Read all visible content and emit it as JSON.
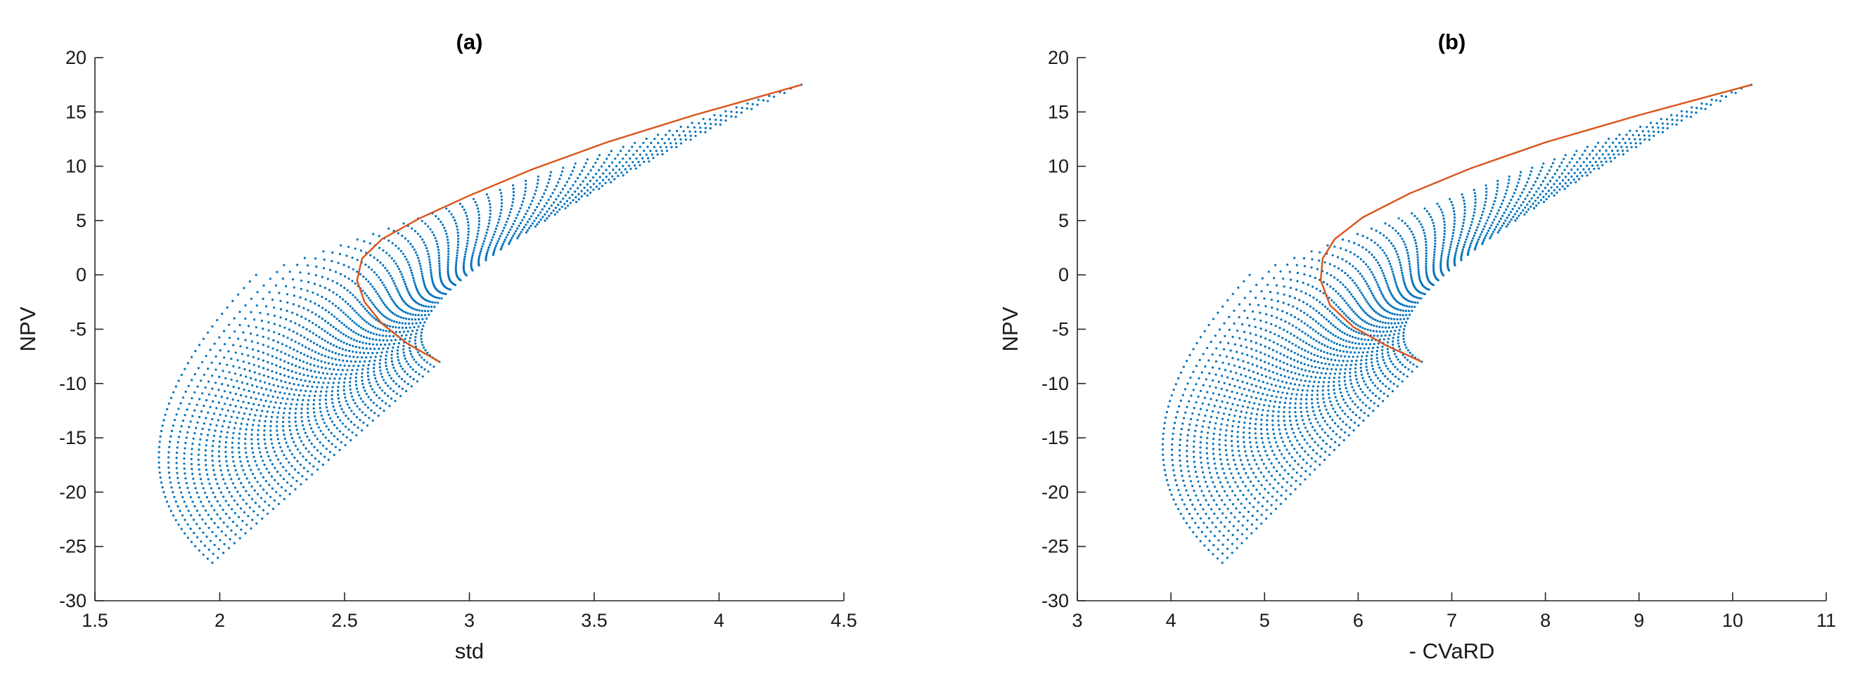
{
  "chart_data": [
    {
      "type": "scatter",
      "title": "(a)",
      "xlabel": "std",
      "ylabel": "NPV",
      "xlim": [
        1.5,
        4.5
      ],
      "ylim": [
        -30,
        20
      ],
      "xticks": [
        "1.5",
        "2",
        "2.5",
        "3",
        "3.5",
        "4",
        "4.5"
      ],
      "yticks": [
        "20",
        "15",
        "10",
        "5",
        "0",
        "-5",
        "-10",
        "-15",
        "-20",
        "-25",
        "-30"
      ],
      "grid": false,
      "series": [
        {
          "kind": "scatter",
          "color": "#0072BD",
          "description_points": {
            "bottom_tip": [
              1.97,
              -26.5
            ],
            "leftmost": [
              1.75,
              -18.5
            ],
            "lower_right_tip": [
              2.88,
              -8.0
            ],
            "upper_right_tip": [
              4.33,
              17.5
            ]
          }
        },
        {
          "kind": "line",
          "color": "#D95319",
          "x": [
            2.88,
            2.75,
            2.65,
            2.58,
            2.55,
            2.57,
            2.65,
            2.8,
            3.0,
            3.25,
            3.55,
            3.9,
            4.33
          ],
          "y": [
            -8.0,
            -6.3,
            -4.5,
            -2.5,
            -0.5,
            1.5,
            3.3,
            5.2,
            7.3,
            9.7,
            12.2,
            14.7,
            17.5
          ]
        }
      ]
    },
    {
      "type": "scatter",
      "title": "(b)",
      "xlabel": "- CVaRD",
      "ylabel": "NPV",
      "xlim": [
        3,
        11
      ],
      "ylim": [
        -30,
        20
      ],
      "xticks": [
        "3",
        "4",
        "5",
        "6",
        "7",
        "8",
        "9",
        "10",
        "11"
      ],
      "yticks": [
        "20",
        "15",
        "10",
        "5",
        "0",
        "-5",
        "-10",
        "-15",
        "-20",
        "-25",
        "-30"
      ],
      "grid": false,
      "series": [
        {
          "kind": "scatter",
          "color": "#0072BD",
          "description_points": {
            "bottom_tip": [
              4.55,
              -26.5
            ],
            "leftmost": [
              3.85,
              -18.0
            ],
            "lower_right_tip": [
              6.68,
              -8.0
            ],
            "upper_right_tip": [
              10.2,
              17.5
            ]
          }
        },
        {
          "kind": "line",
          "color": "#D95319",
          "x": [
            6.68,
            6.3,
            5.95,
            5.7,
            5.6,
            5.62,
            5.75,
            6.05,
            6.55,
            7.2,
            8.0,
            9.0,
            10.2
          ],
          "y": [
            -8.0,
            -6.5,
            -4.8,
            -2.8,
            -0.5,
            1.5,
            3.3,
            5.3,
            7.5,
            9.8,
            12.2,
            14.7,
            17.5
          ]
        }
      ]
    }
  ]
}
